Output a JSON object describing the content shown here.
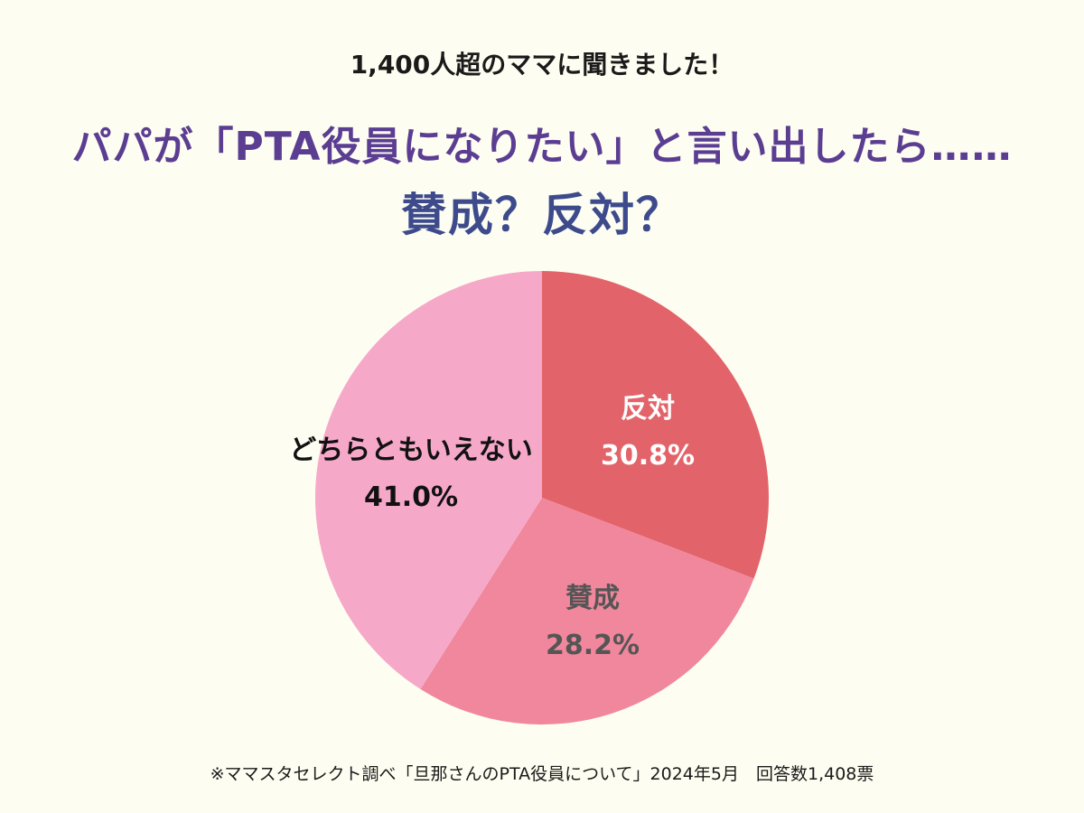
{
  "header": {
    "subtitle": "1,400人超のママに聞きました！",
    "title": "パパが「PTA役員になりたい」と言い出したら……",
    "question": "賛成？反対？"
  },
  "chart_data": {
    "type": "pie",
    "slices": [
      {
        "label": "反対",
        "value": 30.8,
        "display": "30.8%",
        "color": "#e2646a",
        "text_color": "#ffffff"
      },
      {
        "label": "賛成",
        "value": 28.2,
        "display": "28.2%",
        "color": "#f0879c",
        "text_color": "#555555"
      },
      {
        "label": "どちらともいえない",
        "value": 41.0,
        "display": "41.0%",
        "color": "#f6a8c8",
        "text_color": "#111111"
      }
    ],
    "start": "12 o'clock",
    "direction": "clockwise"
  },
  "footnote": "※ママスタセレクト調べ「旦那さんのPTA役員について」2024年5月　回答数1,408票"
}
